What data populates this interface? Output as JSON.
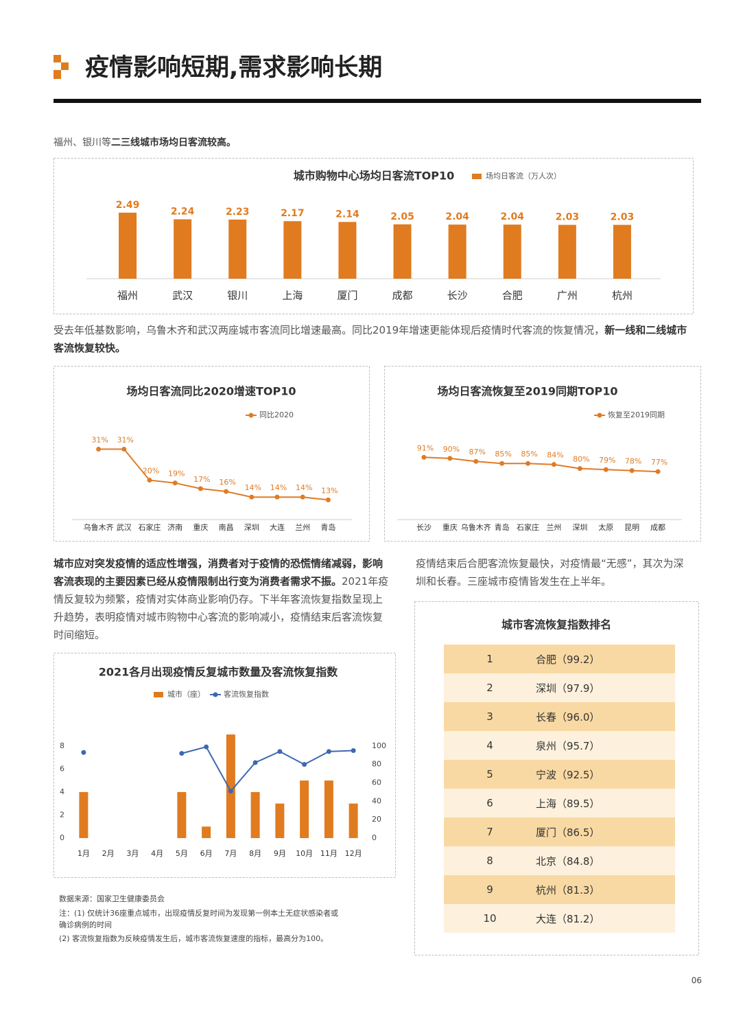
{
  "header": {
    "title": "疫情影响短期,需求影响长期"
  },
  "intro": {
    "plain": "福州、银川等",
    "bold": "二三线城市场均日客流较高。"
  },
  "paragraph2": {
    "plain": "受去年低基数影响，乌鲁木齐和武汉两座城市客流同比增速最高。同比2019年增速更能体现后疫情时代客流的恢复情况，",
    "bold": "新一线和二线城市客流恢复较快。"
  },
  "paragraph3": {
    "bold": "城市应对突发疫情的适应性增强，消费者对于疫情的恐慌情绪减弱，影响客流表现的主要因素已经从疫情限制出行变为消费者需求不振。",
    "plain": "2021年疫情反复较为频繁，疫情对实体商业影响仍存。下半年客流恢复指数呈现上升趋势，表明疫情对城市购物中心客流的影响减小，疫情结束后客流恢复时间缩短。"
  },
  "paragraph4": "疫情结束后合肥客流恢复最快，对疫情最“无感”，其次为深圳和长春。三座城市疫情皆发生在上半年。",
  "chart_data": [
    {
      "type": "bar",
      "title": "城市购物中心场均日客流TOP10",
      "categories": [
        "福州",
        "武汉",
        "银川",
        "上海",
        "厦门",
        "成都",
        "长沙",
        "合肥",
        "广州",
        "杭州"
      ],
      "series": [
        {
          "name": "场均日客流（万人次）",
          "color": "#e07b1f",
          "values": [
            2.49,
            2.24,
            2.23,
            2.17,
            2.14,
            2.05,
            2.04,
            2.04,
            2.03,
            2.03
          ]
        }
      ],
      "ylim": [
        0,
        2.9
      ]
    },
    {
      "type": "line",
      "title": "场均日客流同比2020增速TOP10",
      "categories": [
        "乌鲁木齐",
        "武汉",
        "石家庄",
        "济南",
        "重庆",
        "南昌",
        "深圳",
        "大连",
        "兰州",
        "青岛"
      ],
      "series": [
        {
          "name": "同比2020",
          "color": "#e07b24",
          "values": [
            31,
            31,
            20,
            19,
            17,
            16,
            14,
            14,
            14,
            13
          ],
          "value_labels": [
            "31%",
            "31%",
            "20%",
            "19%",
            "17%",
            "16%",
            "14%",
            "14%",
            "14%",
            "13%"
          ]
        }
      ],
      "ylim": [
        6,
        35
      ]
    },
    {
      "type": "line",
      "title": "场均日客流恢复至2019同期TOP10",
      "categories": [
        "长沙",
        "重庆",
        "乌鲁木齐",
        "青岛",
        "石家庄",
        "兰州",
        "深圳",
        "太原",
        "昆明",
        "成都"
      ],
      "series": [
        {
          "name": "恢复至2019同期",
          "color": "#e07b24",
          "values": [
            91,
            90,
            87,
            85,
            85,
            84,
            80,
            79,
            78,
            77
          ],
          "value_labels": [
            "91%",
            "90%",
            "87%",
            "85%",
            "85%",
            "84%",
            "80%",
            "79%",
            "78%",
            "77%"
          ]
        }
      ],
      "ylim": [
        30,
        110
      ]
    },
    {
      "type": "combo",
      "title": "2021各月出现疫情反复城市数量及客流恢复指数",
      "categories": [
        "1月",
        "2月",
        "3月",
        "4月",
        "5月",
        "6月",
        "7月",
        "8月",
        "9月",
        "10月",
        "11月",
        "12月"
      ],
      "series": [
        {
          "name": "城市（座）",
          "type": "bar",
          "color": "#e07b1f",
          "values": [
            4,
            null,
            null,
            null,
            4,
            1,
            9,
            4,
            3,
            5,
            5,
            3
          ]
        },
        {
          "name": "客流恢复指数",
          "type": "line",
          "axis": "y2",
          "color": "#3d68b0",
          "values": [
            93,
            null,
            null,
            null,
            92,
            99,
            51,
            82,
            94,
            80,
            94,
            95
          ]
        }
      ],
      "ylim": [
        0,
        9.6
      ],
      "yticks": [
        0,
        2,
        4,
        6,
        8
      ],
      "y2lim": [
        0,
        120
      ],
      "y2ticks": [
        0,
        20,
        40,
        60,
        80,
        100
      ]
    }
  ],
  "table": {
    "title": "城市客流恢复指数排名",
    "rows": [
      [
        "1",
        "合肥（99.2）"
      ],
      [
        "2",
        "深圳（97.9）"
      ],
      [
        "3",
        "长春（96.0）"
      ],
      [
        "4",
        "泉州（95.7）"
      ],
      [
        "5",
        "宁波（92.5）"
      ],
      [
        "6",
        "上海（89.5）"
      ],
      [
        "7",
        "厦门（86.5）"
      ],
      [
        "8",
        "北京（84.8）"
      ],
      [
        "9",
        "杭州（81.3）"
      ],
      [
        "10",
        "大连（81.2）"
      ]
    ]
  },
  "notes": [
    "数据来源：国家卫生健康委员会",
    "注：(1) 仅统计36座重点城市，出现疫情反复时间为发现第一例本土无症状感染者或",
    "确诊病例的时间",
    "(2) 客流恢复指数为反映疫情发生后，城市客流恢复速度的指标，最高分为100。"
  ],
  "page_number": "06"
}
